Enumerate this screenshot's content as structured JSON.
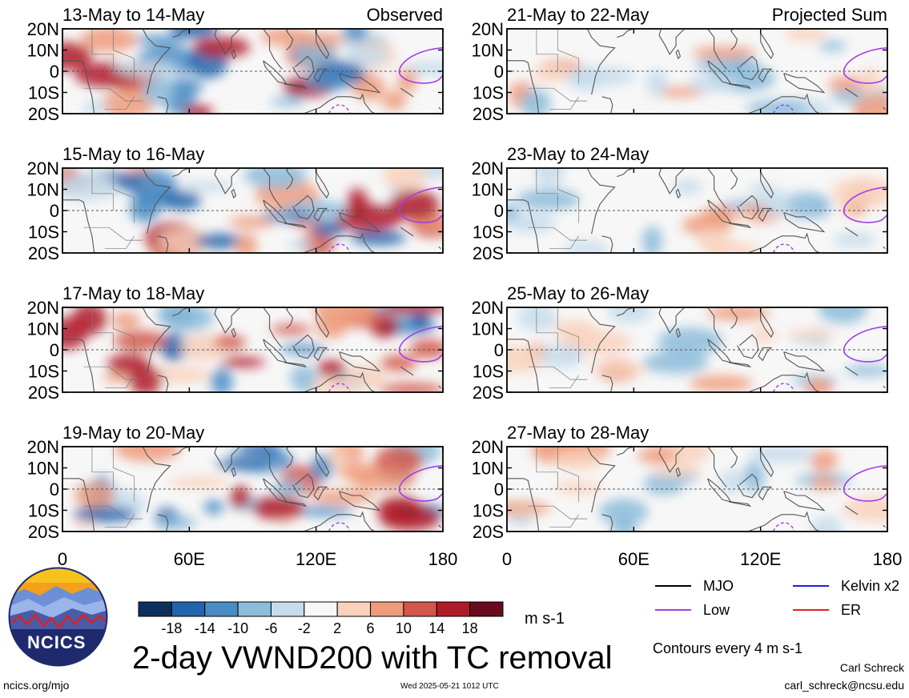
{
  "chart_data": {
    "type": "heatmap",
    "title": "2-day VWND200 with TC removal",
    "units": "m s-1",
    "colorbar": {
      "ticks": [
        -18,
        -14,
        -10,
        -6,
        -2,
        2,
        6,
        10,
        14,
        18
      ],
      "colors": [
        "#0d2f5e",
        "#2264ad",
        "#4a8cc4",
        "#8cbcdb",
        "#c6dcec",
        "#f7f7f7",
        "#f9d2bd",
        "#ef9b7b",
        "#d2574a",
        "#b01a28",
        "#6b0a1f"
      ]
    },
    "x_ticks": [
      "0",
      "60E",
      "120E",
      "180"
    ],
    "y_ticks": [
      "20N",
      "10N",
      "0",
      "10S",
      "20S"
    ],
    "column_labels": {
      "left": "Observed",
      "right": "Projected Sum"
    },
    "panels": [
      {
        "label": "13-May to 14-May"
      },
      {
        "label": "15-May to 16-May"
      },
      {
        "label": "17-May to 18-May"
      },
      {
        "label": "19-May to 20-May"
      },
      {
        "label": "21-May to 22-May"
      },
      {
        "label": "23-May to 24-May"
      },
      {
        "label": "25-May to 26-May"
      },
      {
        "label": "27-May to 28-May"
      }
    ],
    "contour_legend": [
      {
        "label": "MJO",
        "color": "#000000"
      },
      {
        "label": "Kelvin x2",
        "color": "#1e1ee6"
      },
      {
        "label": "Low",
        "color": "#a23ee6"
      },
      {
        "label": "ER",
        "color": "#e61e1e"
      }
    ],
    "contour_note": "Contours every 4 m s-1"
  },
  "footer": {
    "logo_text": "NCICS",
    "site": "ncics.org/mjo",
    "timestamp": "Wed 2025-05-21 1012 UTC",
    "author": "Carl Schreck",
    "email": "carl_schreck@ncsu.edu"
  }
}
